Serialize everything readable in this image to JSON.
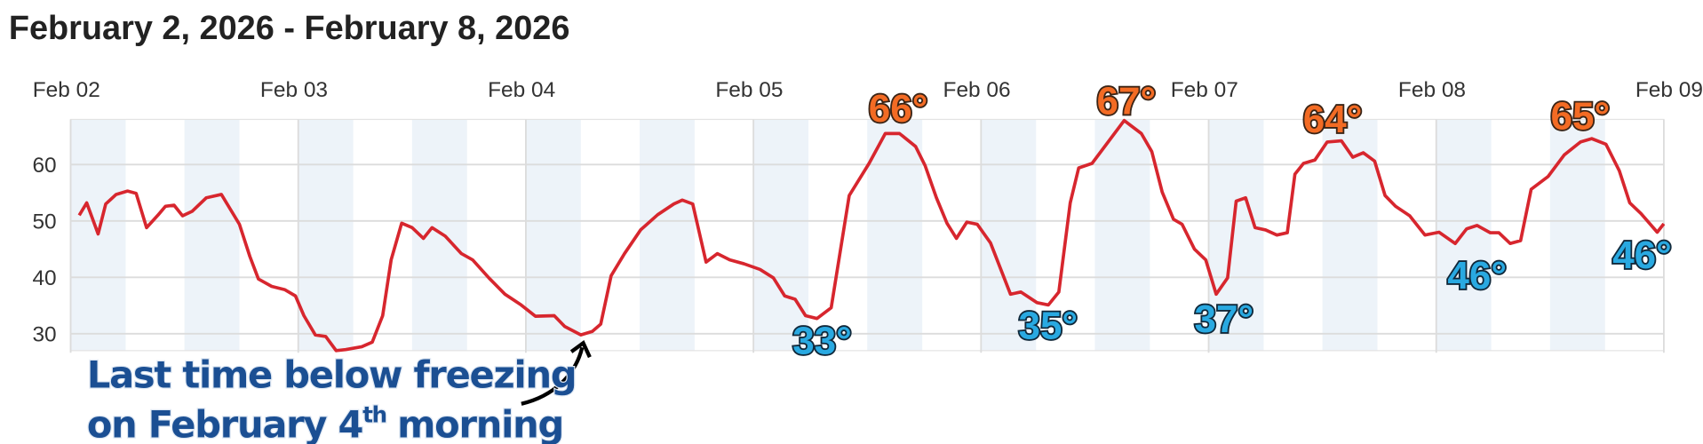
{
  "chart_data": {
    "type": "line",
    "title": "February 2, 2026 - February 8, 2026",
    "x": [
      0.9,
      1.7,
      2.9,
      3.7,
      4.8,
      6,
      6.9,
      8,
      9.2,
      10,
      10.9,
      11.8,
      12.8,
      14.3,
      15.9,
      17.8,
      18.9,
      19.8,
      21.2,
      22.6,
      23.7,
      24.6,
      25.8,
      26.9,
      28,
      29,
      30.7,
      31.8,
      32.9,
      33.8,
      34.9,
      36,
      37.2,
      38.1,
      39.5,
      41.2,
      42.4,
      44.1,
      45.8,
      47.5,
      49,
      51,
      52.1,
      53.8,
      55,
      55.9,
      57,
      58.4,
      60.1,
      61.9,
      63.6,
      64.5,
      65.6,
      67,
      68.2,
      69.5,
      71,
      72.7,
      74.1,
      75.3,
      76.4,
      77.5,
      78.7,
      80.2,
      82.1,
      84.2,
      85.9,
      87.4,
      89.1,
      90.1,
      91.3,
      92.4,
      93.4,
      94.5,
      95.6,
      97,
      99.1,
      100.2,
      101.9,
      103.1,
      104.2,
      105.4,
      106.3,
      107.7,
      109.4,
      111.1,
      112.9,
      114,
      115.1,
      116.3,
      117.2,
      118.5,
      119.7,
      120.8,
      122,
      122.9,
      123.9,
      124.9,
      126,
      127.2,
      128.3,
      129.1,
      130,
      131.2,
      132.5,
      134,
      135.2,
      136.3,
      137.5,
      138.6,
      139.7,
      141.2,
      142.8,
      144.3,
      146,
      147.2,
      148.3,
      149.7,
      150.6,
      151.8,
      152.9,
      154,
      155.8,
      157.5,
      159.2,
      160.4,
      161.9,
      163.3,
      164.4,
      165.6,
      167.3,
      168
    ],
    "values": [
      51,
      53.2,
      47.7,
      53,
      54.7,
      55.3,
      54.9,
      48.8,
      51,
      52.6,
      52.8,
      50.9,
      51.7,
      54.1,
      54.7,
      49.4,
      43.7,
      39.7,
      38.4,
      37.8,
      36.7,
      33.2,
      29.8,
      29.5,
      27,
      27.2,
      27.7,
      28.5,
      33.2,
      43.1,
      49.6,
      48.8,
      46.9,
      48.8,
      47.3,
      44.2,
      43.1,
      39.9,
      37,
      35.1,
      33.1,
      33.2,
      31.3,
      29.8,
      30.4,
      31.7,
      40.3,
      44.2,
      48.4,
      51.1,
      53,
      53.7,
      53,
      42.7,
      44.2,
      43.1,
      42.4,
      41.4,
      39.9,
      36.7,
      36.1,
      33.2,
      32.7,
      34.6,
      54.5,
      60.2,
      65.5,
      65.5,
      63.2,
      59.8,
      54.1,
      49.6,
      46.9,
      49.8,
      49.4,
      46.1,
      37,
      37.4,
      35.5,
      35.1,
      37.4,
      53.2,
      59.4,
      60.2,
      64,
      67.8,
      65.5,
      62.3,
      55.1,
      50.3,
      49.4,
      45,
      43.1,
      37,
      39.9,
      53.5,
      54.1,
      48.8,
      48.4,
      47.5,
      47.9,
      58.3,
      60.2,
      60.8,
      64,
      64.2,
      61.3,
      62.1,
      60.6,
      54.5,
      52.6,
      50.9,
      47.5,
      48,
      46,
      48.6,
      49.2,
      47.9,
      47.9,
      46,
      46.5,
      55.6,
      57.9,
      61.7,
      64,
      64.6,
      63.6,
      58.9,
      53.2,
      51.3,
      48,
      49.5
    ],
    "color": "#d7262e",
    "xlim": [
      0,
      168
    ],
    "xticks": [
      {
        "value": 0,
        "label": "Feb 02"
      },
      {
        "value": 24,
        "label": "Feb 03"
      },
      {
        "value": 48,
        "label": "Feb 04"
      },
      {
        "value": 72,
        "label": "Feb 05"
      },
      {
        "value": 96,
        "label": "Feb 06"
      },
      {
        "value": 120,
        "label": "Feb 07"
      },
      {
        "value": 144,
        "label": "Feb 08"
      },
      {
        "value": 168,
        "label": "Feb 09"
      }
    ],
    "ylim": [
      27,
      68
    ],
    "yticks": [
      30,
      40,
      50,
      60
    ],
    "grid": true,
    "high_labels": [
      "66°",
      "67°",
      "64°",
      "65°"
    ],
    "low_labels": [
      "33°",
      "35°",
      "37°",
      "46°",
      "46°"
    ],
    "annotation": {
      "line1": "Last time below freezing",
      "line2": "on February 4",
      "sup": "th",
      "line2_end": "morning"
    }
  }
}
